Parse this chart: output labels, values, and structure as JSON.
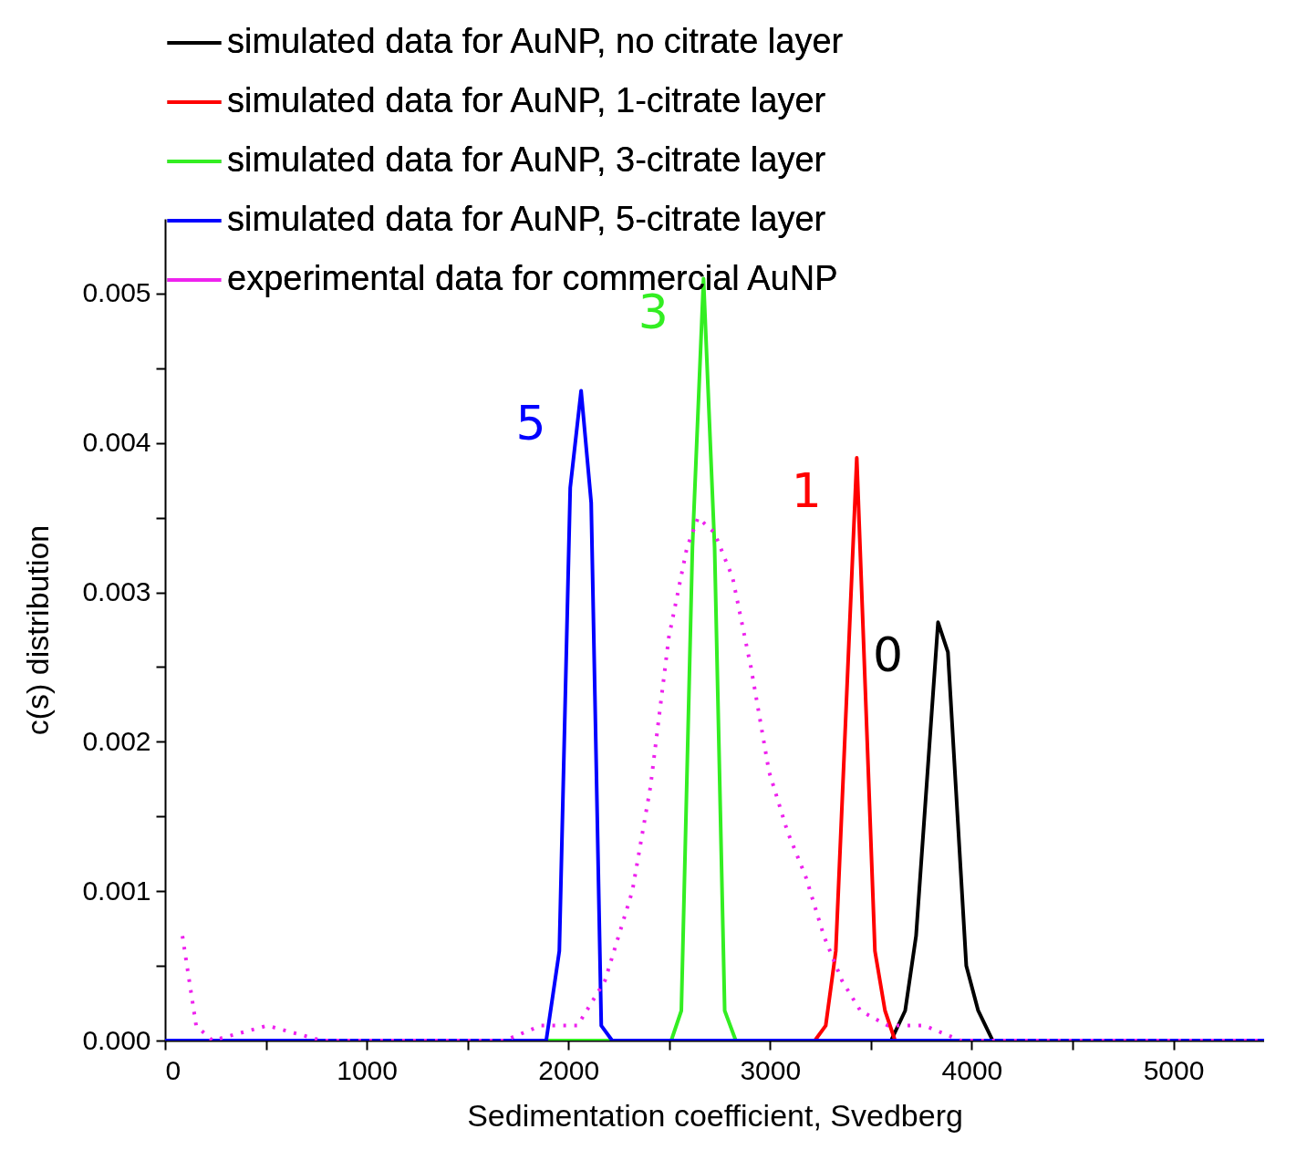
{
  "chart_data": {
    "type": "line",
    "xlabel": "Sedimentation coefficient, Svedberg",
    "ylabel": "c(s) distribution",
    "xlim": [
      0,
      5450
    ],
    "ylim": [
      0,
      0.0055
    ],
    "xticks": [
      0,
      {
        "value": 500,
        "label": null
      },
      1000,
      {
        "value": 1500,
        "label": null
      },
      2000,
      {
        "value": 2500,
        "label": null
      },
      3000,
      {
        "value": 3500,
        "label": null
      },
      4000,
      {
        "value": 4500,
        "label": null
      },
      5000
    ],
    "yticks": [
      {
        "value": 0,
        "label": "0.000"
      },
      {
        "value": 0.0005,
        "label": null
      },
      {
        "value": 0.001,
        "label": "0.001"
      },
      {
        "value": 0.0015,
        "label": null
      },
      {
        "value": 0.002,
        "label": "0.002"
      },
      {
        "value": 0.0025,
        "label": null
      },
      {
        "value": 0.003,
        "label": "0.003"
      },
      {
        "value": 0.0035,
        "label": null
      },
      {
        "value": 0.004,
        "label": "0.004"
      },
      {
        "value": 0.0045,
        "label": null
      },
      {
        "value": 0.005,
        "label": "0.005"
      }
    ],
    "legend": "top left",
    "grid": false,
    "marker": "none",
    "series": [
      {
        "name": "simulated data for AuNP, no citrate layer",
        "color": "#000000",
        "line_style": "solid",
        "x": [
          0,
          3600,
          3670,
          3724,
          3833,
          3882,
          3973,
          4032,
          4104,
          5450
        ],
        "values": [
          0,
          0,
          0.0002,
          0.0007,
          0.0028,
          0.0026,
          0.0005,
          0.0002,
          0,
          0
        ]
      },
      {
        "name": "simulated data for AuNP, 1-citrate layer",
        "color": "#ff0000",
        "line_style": "solid",
        "x": [
          0,
          3222,
          3276,
          3326,
          3430,
          3520,
          3570,
          3620,
          5450
        ],
        "values": [
          0,
          0,
          0.0001,
          0.0006,
          0.0039,
          0.0006,
          0.0002,
          0,
          0
        ]
      },
      {
        "name": "simulated data for AuNP, 3-citrate layer",
        "color": "#33ee22",
        "line_style": "solid",
        "x": [
          0,
          2510,
          2560,
          2615,
          2670,
          2725,
          2775,
          2830,
          5450
        ],
        "values": [
          0,
          0,
          0.0002,
          0.0033,
          0.0051,
          0.0033,
          0.0002,
          0,
          0
        ]
      },
      {
        "name": "simulated data for AuNP, 5-citrate layer",
        "color": "#0000ff",
        "line_style": "solid",
        "x": [
          0,
          1890,
          1955,
          2009,
          2063,
          2113,
          2163,
          2217,
          5450
        ],
        "values": [
          0,
          0,
          0.0006,
          0.0037,
          0.00435,
          0.0036,
          0.0001,
          0,
          0
        ]
      },
      {
        "name": "experimental data for commercial AuNP",
        "color": "#ee22ee",
        "line_style": "dotted",
        "x": [
          86,
          154,
          235,
          507,
          778,
          1231,
          1683,
          1864,
          2045,
          2181,
          2317,
          2407,
          2498,
          2588,
          2643,
          2724,
          2814,
          2905,
          2995,
          3086,
          3176,
          3267,
          3357,
          3448,
          3584,
          3765,
          3946,
          4172,
          5450
        ],
        "values": [
          0.0007,
          0.0001,
          0,
          0.0001,
          0,
          0,
          0,
          0.0001,
          0.0001,
          0.0004,
          0.001,
          0.0017,
          0.0027,
          0.0033,
          0.0035,
          0.0034,
          0.0031,
          0.0025,
          0.0018,
          0.0014,
          0.0011,
          0.0007,
          0.0004,
          0.0002,
          0.0001,
          0.0001,
          0,
          0,
          0
        ]
      }
    ],
    "annotations": [
      "0",
      "1",
      "3",
      "5"
    ]
  }
}
